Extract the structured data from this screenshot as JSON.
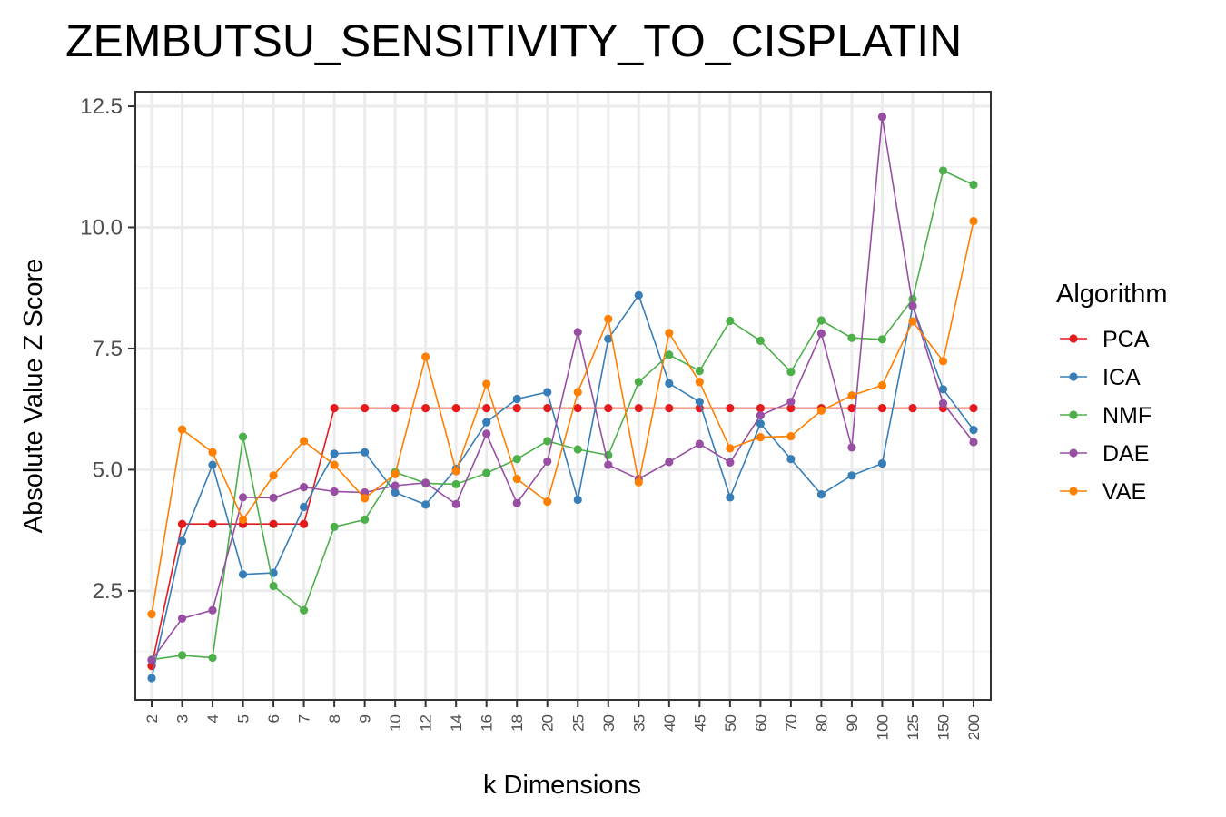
{
  "chart_data": {
    "type": "line",
    "title": "ZEMBUTSU_SENSITIVITY_TO_CISPLATIN",
    "xlabel": "k Dimensions",
    "ylabel": "Absolute Value Z Score",
    "categories": [
      "2",
      "3",
      "4",
      "5",
      "6",
      "7",
      "8",
      "9",
      "10",
      "12",
      "14",
      "16",
      "18",
      "20",
      "25",
      "30",
      "35",
      "40",
      "45",
      "50",
      "60",
      "70",
      "80",
      "90",
      "100",
      "125",
      "150",
      "200"
    ],
    "ylim": [
      0.25,
      12.8
    ],
    "yticks": [
      2.5,
      5.0,
      7.5,
      10.0,
      12.5
    ],
    "ytick_labels": [
      "2.5",
      "5.0",
      "7.5",
      "10.0",
      "12.5"
    ],
    "grid": true,
    "legend": {
      "title": "Algorithm",
      "position": "right"
    },
    "series": [
      {
        "name": "PCA",
        "color": "#e41a1c",
        "values": [
          0.95,
          3.88,
          3.88,
          3.88,
          3.88,
          3.88,
          6.27,
          6.27,
          6.27,
          6.27,
          6.27,
          6.27,
          6.27,
          6.27,
          6.27,
          6.27,
          6.27,
          6.27,
          6.27,
          6.27,
          6.27,
          6.27,
          6.27,
          6.27,
          6.27,
          6.27,
          6.27,
          6.27
        ]
      },
      {
        "name": "ICA",
        "color": "#377eb8",
        "values": [
          0.7,
          3.53,
          5.1,
          2.84,
          2.87,
          4.23,
          5.33,
          5.36,
          4.53,
          4.28,
          5.02,
          5.98,
          6.46,
          6.6,
          4.38,
          7.7,
          8.6,
          6.78,
          6.4,
          4.43,
          5.95,
          5.22,
          4.49,
          4.88,
          5.13,
          8.38,
          6.66,
          5.82
        ]
      },
      {
        "name": "NMF",
        "color": "#4daf4a",
        "values": [
          1.08,
          1.17,
          1.12,
          5.68,
          2.6,
          2.1,
          3.82,
          3.97,
          4.95,
          4.72,
          4.7,
          4.93,
          5.22,
          5.59,
          5.42,
          5.3,
          6.81,
          7.37,
          7.04,
          8.07,
          7.66,
          7.02,
          8.08,
          7.72,
          7.69,
          8.52,
          11.17,
          10.88
        ]
      },
      {
        "name": "DAE",
        "color": "#984ea3",
        "values": [
          1.07,
          1.93,
          2.1,
          4.43,
          4.42,
          4.64,
          4.55,
          4.53,
          4.67,
          4.73,
          4.29,
          5.74,
          4.31,
          5.17,
          7.84,
          5.1,
          4.81,
          5.16,
          5.53,
          5.15,
          6.12,
          6.4,
          7.81,
          5.46,
          12.28,
          8.38,
          6.37,
          5.57
        ]
      },
      {
        "name": "VAE",
        "color": "#ff7f00",
        "values": [
          2.02,
          5.83,
          5.36,
          3.97,
          4.88,
          5.59,
          5.1,
          4.41,
          4.91,
          7.33,
          4.97,
          6.77,
          4.81,
          4.34,
          6.6,
          8.11,
          4.74,
          7.82,
          6.81,
          5.44,
          5.67,
          5.69,
          6.22,
          6.53,
          6.74,
          8.06,
          7.24,
          10.13
        ]
      }
    ]
  }
}
